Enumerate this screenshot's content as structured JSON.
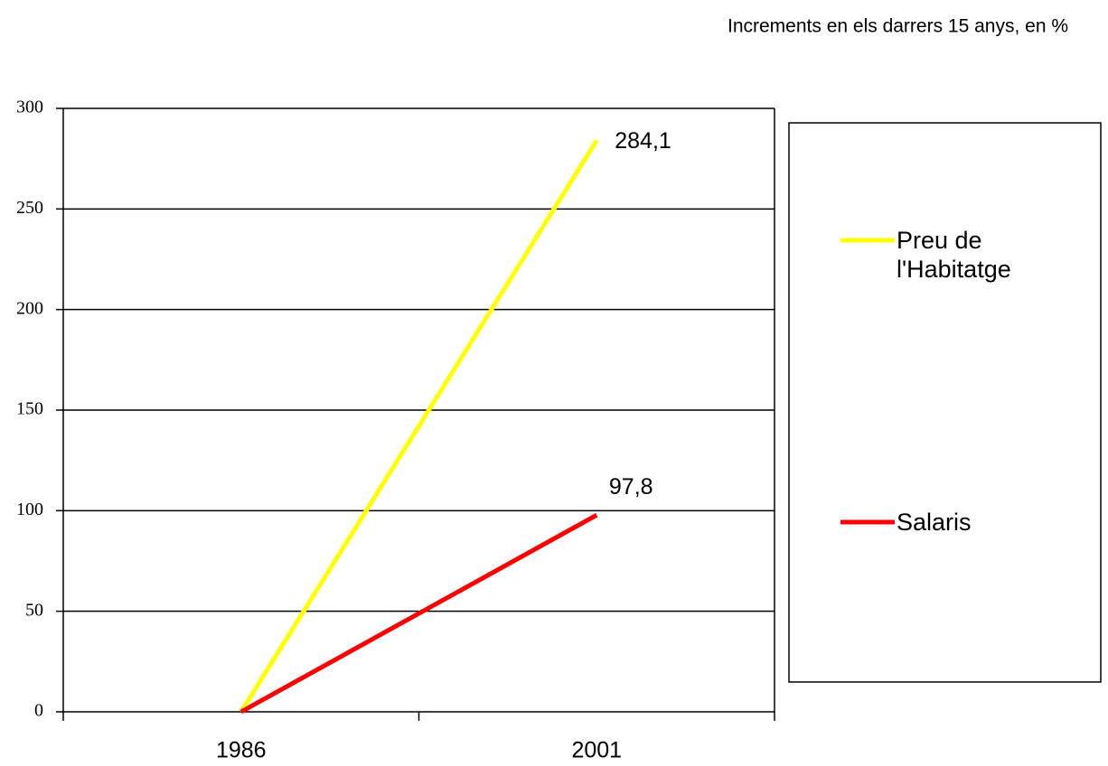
{
  "chart_data": {
    "type": "line",
    "title": "Increments en els darrers 15 anys, en %",
    "categories": [
      "1986",
      "2001"
    ],
    "series": [
      {
        "name": "Preu de l'Habitatge",
        "color": "#ffff00",
        "values": [
          0,
          284.1
        ],
        "value_labels": [
          null,
          "284,1"
        ]
      },
      {
        "name": "Salaris",
        "color": "#ff0000",
        "values": [
          0,
          97.8
        ],
        "value_labels": [
          null,
          "97,8"
        ]
      }
    ],
    "ylim": [
      0,
      300
    ],
    "yticks": [
      0,
      50,
      100,
      150,
      200,
      250,
      300
    ],
    "grid": true,
    "legend": "right"
  }
}
